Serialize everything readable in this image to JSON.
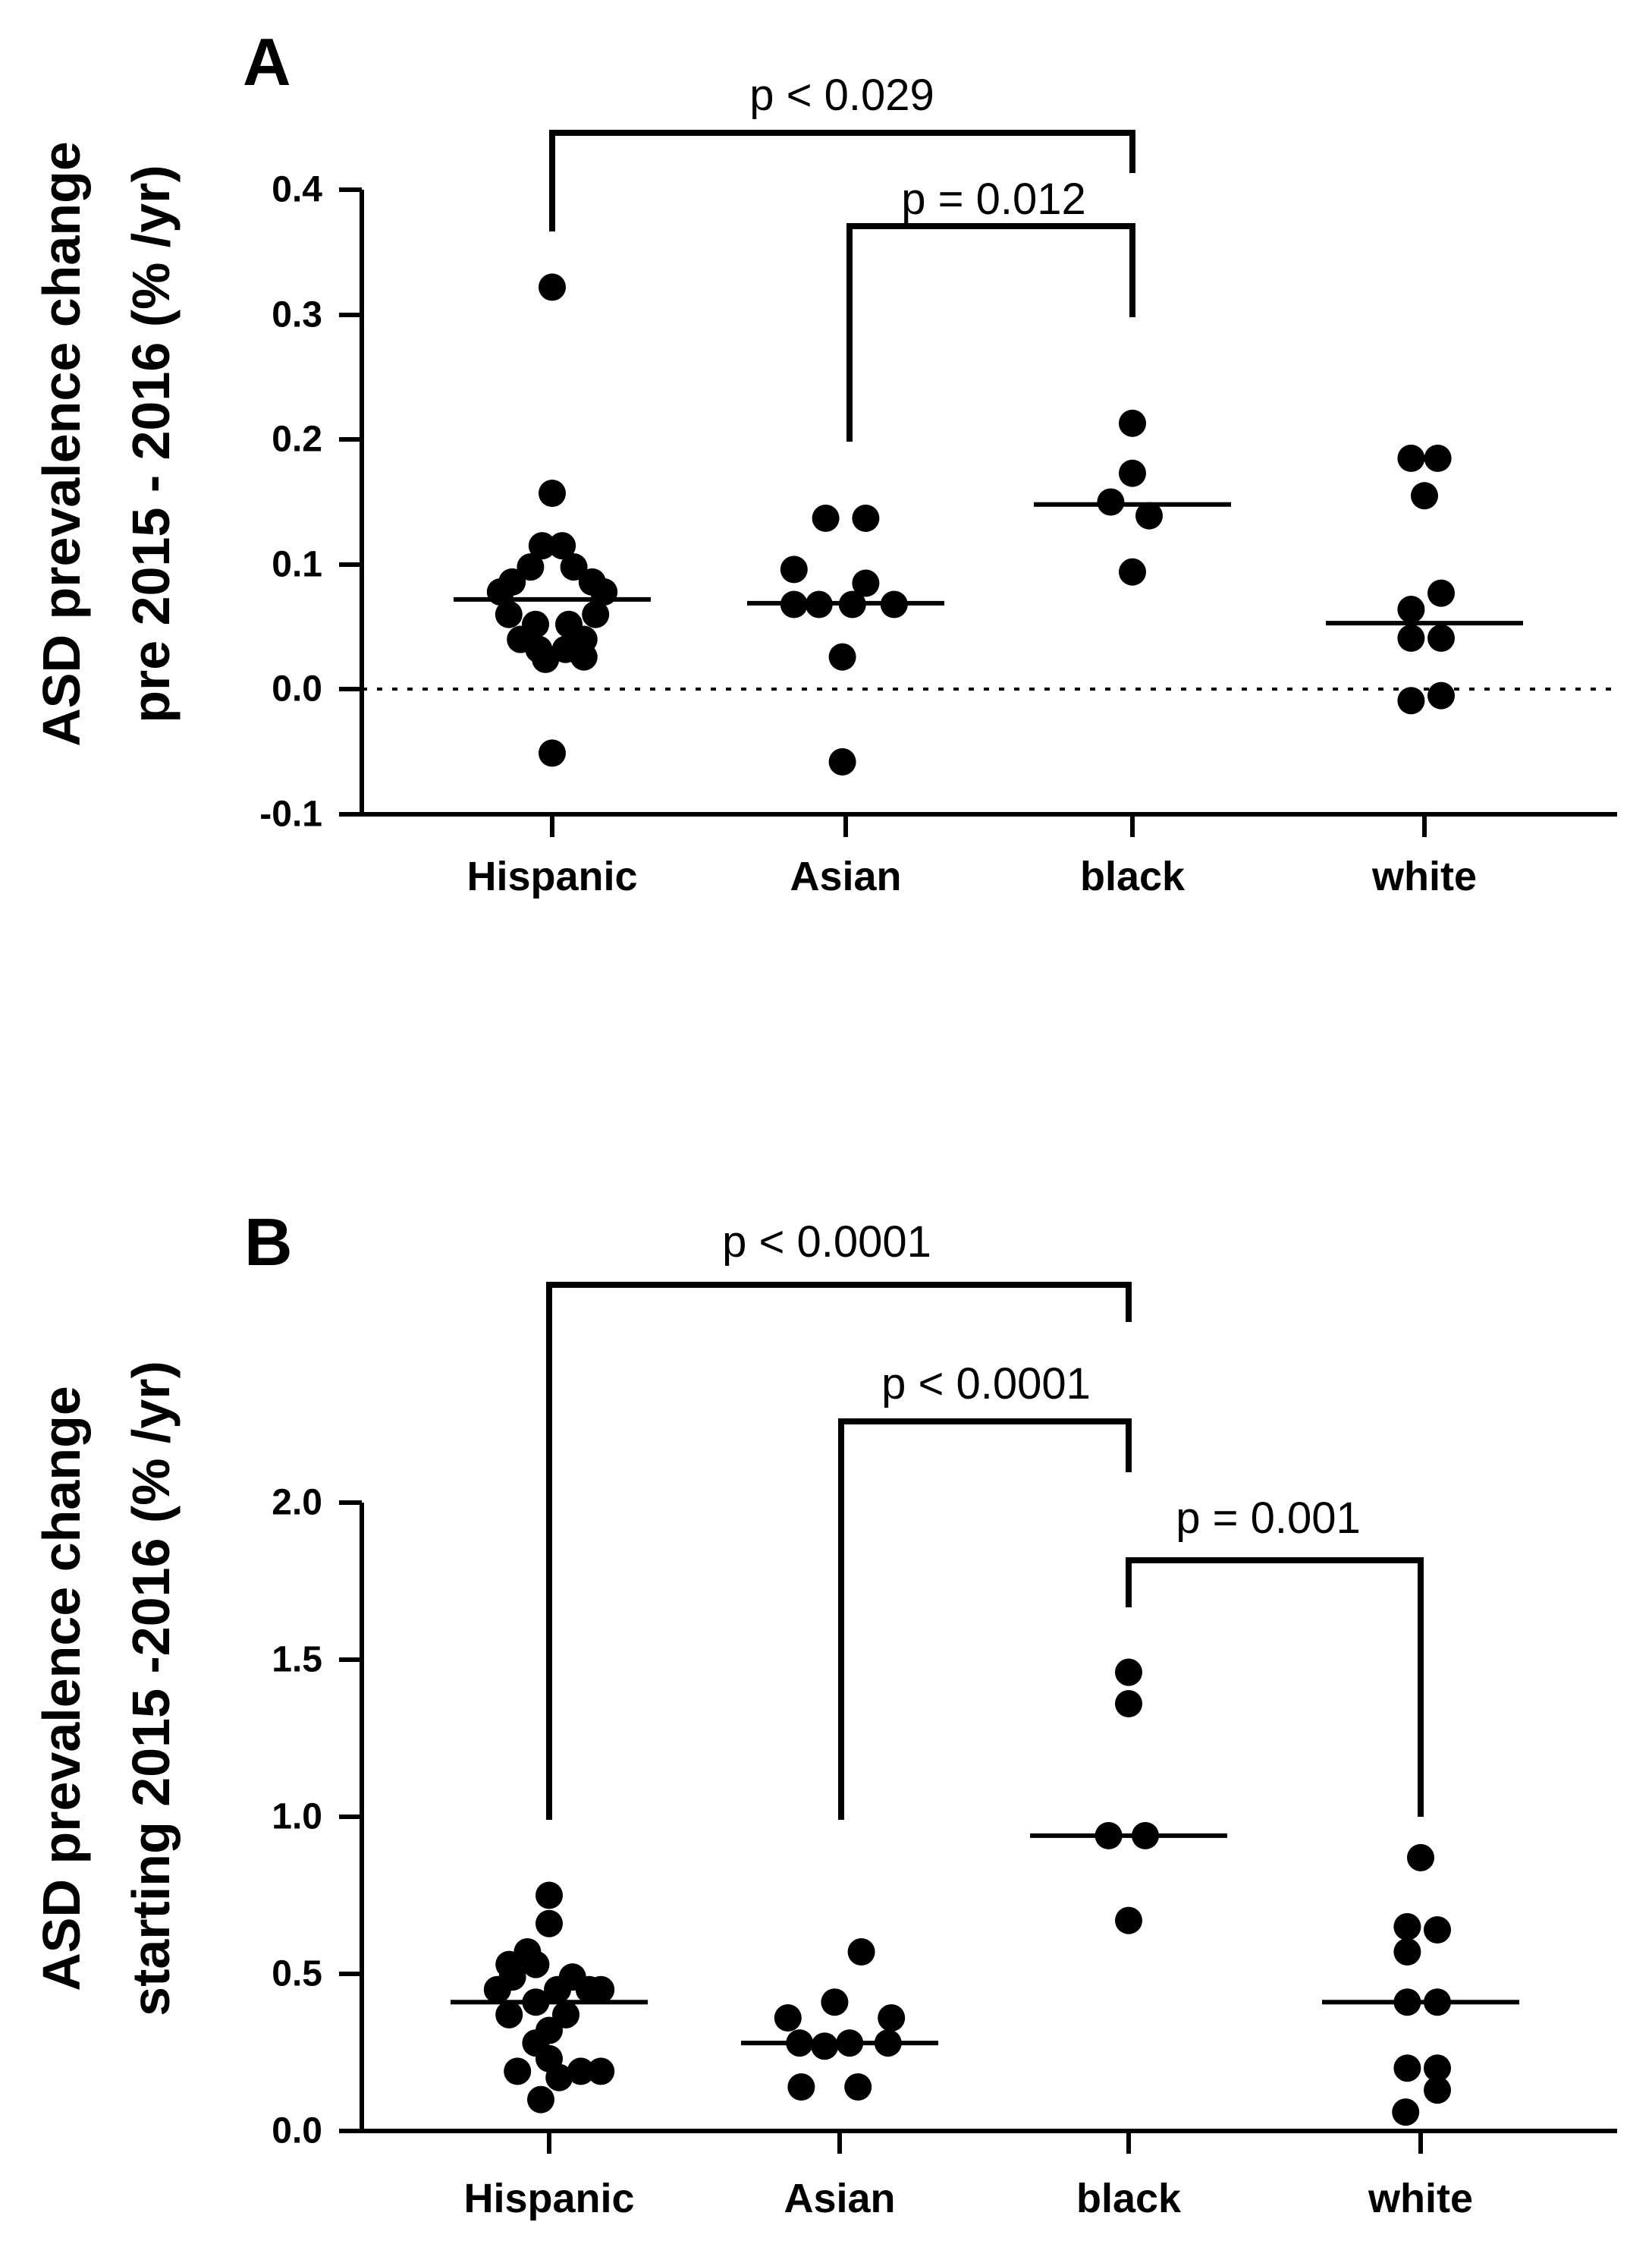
{
  "chart_data": [
    {
      "panel": "A",
      "type": "scatter",
      "ylabel": [
        "ASD prevalence change",
        "pre 2015 - 2016 (% /yr)"
      ],
      "categories": [
        "Hispanic",
        "Asian",
        "black",
        "white"
      ],
      "ylim": [
        -0.1,
        0.4
      ],
      "yticks": [
        "0.4",
        "0.3",
        "0.2",
        "0.1",
        "0.0",
        "-0.1"
      ],
      "ytick_values": [
        0.4,
        0.3,
        0.2,
        0.1,
        0.0,
        -0.1
      ],
      "reference_line": 0.0,
      "grid": false,
      "series": [
        {
          "category": "Hispanic",
          "median": 0.072,
          "points": [
            [
              0,
              0.322
            ],
            [
              0,
              0.157
            ],
            [
              -0.6,
              0.115
            ],
            [
              0.6,
              0.115
            ],
            [
              -1.3,
              0.098
            ],
            [
              1.3,
              0.098
            ],
            [
              -2.4,
              0.086
            ],
            [
              2.4,
              0.086
            ],
            [
              -3.1,
              0.078
            ],
            [
              3.1,
              0.078
            ],
            [
              -2.6,
              0.06
            ],
            [
              2.6,
              0.06
            ],
            [
              -1.0,
              0.052
            ],
            [
              1.0,
              0.052
            ],
            [
              -1.9,
              0.04
            ],
            [
              1.9,
              0.04
            ],
            [
              -0.8,
              0.032
            ],
            [
              0.8,
              0.032
            ],
            [
              -0.4,
              0.024
            ],
            [
              1.9,
              0.026
            ],
            [
              0,
              -0.051
            ]
          ]
        },
        {
          "category": "Asian",
          "median": 0.069,
          "points": [
            [
              -1.2,
              0.137
            ],
            [
              1.2,
              0.137
            ],
            [
              -3.1,
              0.096
            ],
            [
              1.2,
              0.085
            ],
            [
              -3.1,
              0.068
            ],
            [
              -1.6,
              0.068
            ],
            [
              0.4,
              0.068
            ],
            [
              2.9,
              0.068
            ],
            [
              -0.2,
              0.026
            ],
            [
              -0.2,
              -0.058
            ]
          ]
        },
        {
          "category": "black",
          "median": 0.148,
          "points": [
            [
              0,
              0.213
            ],
            [
              0,
              0.173
            ],
            [
              -1.3,
              0.15
            ],
            [
              1.0,
              0.139
            ],
            [
              0,
              0.094
            ]
          ]
        },
        {
          "category": "white",
          "median": 0.053,
          "points": [
            [
              -0.8,
              0.185
            ],
            [
              0.8,
              0.185
            ],
            [
              0,
              0.155
            ],
            [
              1.0,
              0.077
            ],
            [
              -0.8,
              0.064
            ],
            [
              -0.8,
              0.041
            ],
            [
              1.0,
              0.041
            ],
            [
              -0.8,
              -0.009
            ],
            [
              1.0,
              -0.005
            ]
          ]
        }
      ],
      "significance": [
        {
          "label": "p < 0.029",
          "from": "Hispanic",
          "to": "black"
        },
        {
          "label": "p = 0.012",
          "from": "Asian",
          "to": "black"
        }
      ]
    },
    {
      "panel": "B",
      "type": "scatter",
      "ylabel": [
        "ASD prevalence change",
        "starting 2015 -2016 (% /yr)"
      ],
      "categories": [
        "Hispanic",
        "Asian",
        "black",
        "white"
      ],
      "ylim": [
        0.0,
        2.0
      ],
      "yticks": [
        "2.0",
        "1.5",
        "1.0",
        "0.5",
        "0.0"
      ],
      "ytick_values": [
        2.0,
        1.5,
        1.0,
        0.5,
        0.0
      ],
      "grid": false,
      "series": [
        {
          "category": "Hispanic",
          "median": 0.41,
          "points": [
            [
              0,
              0.75
            ],
            [
              0,
              0.66
            ],
            [
              -1.3,
              0.57
            ],
            [
              -2.4,
              0.53
            ],
            [
              -0.8,
              0.53
            ],
            [
              -2.2,
              0.49
            ],
            [
              1.4,
              0.49
            ],
            [
              0.5,
              0.45
            ],
            [
              -3.1,
              0.45
            ],
            [
              3.1,
              0.45
            ],
            [
              2.4,
              0.45
            ],
            [
              -0.8,
              0.41
            ],
            [
              -2.4,
              0.37
            ],
            [
              1.0,
              0.37
            ],
            [
              0,
              0.32
            ],
            [
              -0.8,
              0.28
            ],
            [
              0,
              0.23
            ],
            [
              1.9,
              0.19
            ],
            [
              3.1,
              0.19
            ],
            [
              -1.9,
              0.19
            ],
            [
              0.6,
              0.17
            ],
            [
              -0.5,
              0.1
            ]
          ]
        },
        {
          "category": "Asian",
          "median": 0.28,
          "points": [
            [
              1.3,
              0.57
            ],
            [
              -0.3,
              0.41
            ],
            [
              -3.1,
              0.36
            ],
            [
              3.1,
              0.36
            ],
            [
              -2.4,
              0.28
            ],
            [
              2.9,
              0.28
            ],
            [
              0.6,
              0.28
            ],
            [
              -0.9,
              0.27
            ],
            [
              -2.3,
              0.14
            ],
            [
              1.1,
              0.14
            ]
          ]
        },
        {
          "category": "black",
          "median": 0.94,
          "points": [
            [
              0,
              1.46
            ],
            [
              0,
              1.36
            ],
            [
              -1.2,
              0.94
            ],
            [
              1.0,
              0.94
            ],
            [
              0,
              0.67
            ]
          ]
        },
        {
          "category": "white",
          "median": 0.41,
          "points": [
            [
              0,
              0.87
            ],
            [
              -0.8,
              0.65
            ],
            [
              1.0,
              0.64
            ],
            [
              -0.8,
              0.57
            ],
            [
              -0.8,
              0.41
            ],
            [
              1.0,
              0.41
            ],
            [
              -0.8,
              0.2
            ],
            [
              1.0,
              0.2
            ],
            [
              1.0,
              0.13
            ],
            [
              -0.9,
              0.06
            ]
          ]
        }
      ],
      "significance": [
        {
          "label": "p < 0.0001",
          "from": "Hispanic",
          "to": "black"
        },
        {
          "label": "p < 0.0001",
          "from": "Asian",
          "to": "black"
        },
        {
          "label": "p = 0.001",
          "from": "black",
          "to": "white"
        }
      ]
    }
  ]
}
